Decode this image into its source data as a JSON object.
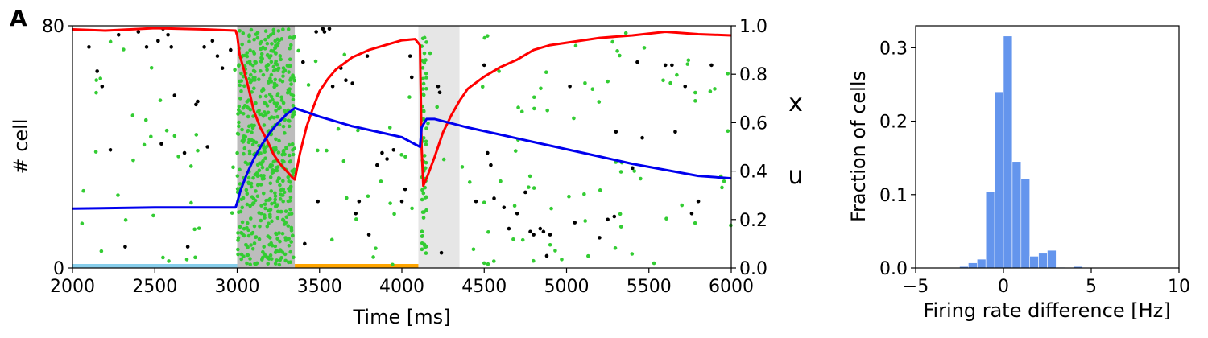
{
  "panel_label": "A",
  "chart_data": [
    {
      "type": "scatter",
      "name": "raster-with-synaptic-variables",
      "xlabel": "Time [ms]",
      "ylabel": "# cell",
      "xlim": [
        2000,
        6000
      ],
      "ylim": [
        0,
        80
      ],
      "y2lim": [
        0,
        1
      ],
      "xticks": [
        "2000",
        "2500",
        "3000",
        "3500",
        "4000",
        "4500",
        "5000",
        "5500",
        "6000"
      ],
      "yticks": [
        "0",
        "80"
      ],
      "y2ticks": [
        "0.0",
        "0.2",
        "0.4",
        "0.6",
        "0.8",
        "1.0"
      ],
      "grid": false,
      "colors": {
        "x": "#ff0000",
        "u": "#0000ee",
        "foreground_spikes": "#33cc33",
        "background_spikes": "#000000",
        "shade_dark": "#bdbdbd",
        "shade_light": "#e6e6e6",
        "bar_cue": "#87ceeb",
        "bar_delay": "#ffa500"
      },
      "shaded_regions": [
        {
          "x0": 3000,
          "x1": 3350,
          "shade": "dark"
        },
        {
          "x0": 4100,
          "x1": 4350,
          "shade": "light"
        }
      ],
      "bottom_bars": [
        {
          "x0": 2000,
          "x1": 3000,
          "color": "bar_cue"
        },
        {
          "x0": 3350,
          "x1": 4100,
          "color": "bar_delay"
        }
      ],
      "series": [
        {
          "name": "x",
          "axis": "right",
          "points": [
            [
              2000,
              0.985
            ],
            [
              2200,
              0.98
            ],
            [
              2500,
              0.99
            ],
            [
              2800,
              0.985
            ],
            [
              2990,
              0.98
            ],
            [
              3000,
              0.96
            ],
            [
              3015,
              0.88
            ],
            [
              3040,
              0.82
            ],
            [
              3070,
              0.74
            ],
            [
              3100,
              0.65
            ],
            [
              3140,
              0.58
            ],
            [
              3180,
              0.53
            ],
            [
              3220,
              0.47
            ],
            [
              3260,
              0.43
            ],
            [
              3300,
              0.4
            ],
            [
              3340,
              0.37
            ],
            [
              3350,
              0.365
            ],
            [
              3380,
              0.47
            ],
            [
              3420,
              0.58
            ],
            [
              3460,
              0.66
            ],
            [
              3500,
              0.73
            ],
            [
              3550,
              0.78
            ],
            [
              3600,
              0.82
            ],
            [
              3700,
              0.87
            ],
            [
              3800,
              0.9
            ],
            [
              3900,
              0.92
            ],
            [
              4000,
              0.94
            ],
            [
              4080,
              0.945
            ],
            [
              4110,
              0.92
            ],
            [
              4120,
              0.5
            ],
            [
              4130,
              0.34
            ],
            [
              4150,
              0.37
            ],
            [
              4200,
              0.46
            ],
            [
              4250,
              0.56
            ],
            [
              4300,
              0.63
            ],
            [
              4350,
              0.69
            ],
            [
              4400,
              0.74
            ],
            [
              4500,
              0.79
            ],
            [
              4600,
              0.83
            ],
            [
              4700,
              0.86
            ],
            [
              4800,
              0.9
            ],
            [
              4900,
              0.92
            ],
            [
              5000,
              0.93
            ],
            [
              5200,
              0.95
            ],
            [
              5400,
              0.96
            ],
            [
              5600,
              0.975
            ],
            [
              5800,
              0.965
            ],
            [
              6000,
              0.96
            ]
          ]
        },
        {
          "name": "u",
          "axis": "right",
          "points": [
            [
              2000,
              0.245
            ],
            [
              2500,
              0.25
            ],
            [
              2990,
              0.25
            ],
            [
              3000,
              0.27
            ],
            [
              3020,
              0.32
            ],
            [
              3060,
              0.39
            ],
            [
              3100,
              0.45
            ],
            [
              3150,
              0.51
            ],
            [
              3200,
              0.56
            ],
            [
              3250,
              0.6
            ],
            [
              3300,
              0.635
            ],
            [
              3350,
              0.66
            ],
            [
              3500,
              0.625
            ],
            [
              3700,
              0.585
            ],
            [
              3900,
              0.555
            ],
            [
              4000,
              0.54
            ],
            [
              4110,
              0.5
            ],
            [
              4120,
              0.58
            ],
            [
              4150,
              0.615
            ],
            [
              4200,
              0.615
            ],
            [
              4400,
              0.58
            ],
            [
              4600,
              0.55
            ],
            [
              4800,
              0.52
            ],
            [
              5000,
              0.49
            ],
            [
              5200,
              0.46
            ],
            [
              5400,
              0.43
            ],
            [
              5600,
              0.405
            ],
            [
              5800,
              0.38
            ],
            [
              6000,
              0.37
            ]
          ]
        }
      ],
      "spike_raster": {
        "background_points": [
          [
            2100,
            73
          ],
          [
            2150,
            65
          ],
          [
            2180,
            60
          ],
          [
            2230,
            39
          ],
          [
            2280,
            77
          ],
          [
            2320,
            7
          ],
          [
            2400,
            78
          ],
          [
            2450,
            73
          ],
          [
            2520,
            75
          ],
          [
            2540,
            41
          ],
          [
            2550,
            79
          ],
          [
            2580,
            77
          ],
          [
            2600,
            73
          ],
          [
            2620,
            57
          ],
          [
            2680,
            38
          ],
          [
            2700,
            7
          ],
          [
            2750,
            54
          ],
          [
            2760,
            55
          ],
          [
            2800,
            73
          ],
          [
            2820,
            40
          ],
          [
            2850,
            75
          ],
          [
            2880,
            70
          ],
          [
            2910,
            66
          ],
          [
            2960,
            72
          ],
          [
            3400,
            68
          ],
          [
            3410,
            8
          ],
          [
            3480,
            78
          ],
          [
            3490,
            22
          ],
          [
            3520,
            79
          ],
          [
            3530,
            78
          ],
          [
            3560,
            79
          ],
          [
            3580,
            60
          ],
          [
            3630,
            66
          ],
          [
            3660,
            62
          ],
          [
            3700,
            61
          ],
          [
            3720,
            18
          ],
          [
            3740,
            22
          ],
          [
            3790,
            70
          ],
          [
            3800,
            11
          ],
          [
            3850,
            34
          ],
          [
            3880,
            38
          ],
          [
            3910,
            36
          ],
          [
            3950,
            39
          ],
          [
            4000,
            22
          ],
          [
            4020,
            26
          ],
          [
            4050,
            70
          ],
          [
            4060,
            63
          ],
          [
            4220,
            60
          ],
          [
            4230,
            58
          ],
          [
            4240,
            5
          ],
          [
            4450,
            22
          ],
          [
            4500,
            67
          ],
          [
            4520,
            38
          ],
          [
            4540,
            34
          ],
          [
            4560,
            23
          ],
          [
            4620,
            20
          ],
          [
            4650,
            13
          ],
          [
            4700,
            18
          ],
          [
            4750,
            25
          ],
          [
            4780,
            12
          ],
          [
            4800,
            11
          ],
          [
            4840,
            13
          ],
          [
            4860,
            12
          ],
          [
            4880,
            4
          ],
          [
            4900,
            11
          ],
          [
            5020,
            60
          ],
          [
            5050,
            15
          ],
          [
            5200,
            10
          ],
          [
            5250,
            16
          ],
          [
            5290,
            17
          ],
          [
            5300,
            45
          ],
          [
            5400,
            33
          ],
          [
            5430,
            68
          ],
          [
            5460,
            43
          ],
          [
            5600,
            67
          ],
          [
            5640,
            67
          ],
          [
            5660,
            45
          ],
          [
            5720,
            60
          ],
          [
            5760,
            18
          ],
          [
            5800,
            22
          ],
          [
            5880,
            67
          ]
        ]
      }
    },
    {
      "type": "bar",
      "name": "histogram",
      "xlabel": "Firing rate difference [Hz]",
      "ylabel": "Fraction of cells",
      "xlim": [
        -5,
        10
      ],
      "ylim": [
        0,
        0.33
      ],
      "xticks": [
        "−5",
        "0",
        "5",
        "10"
      ],
      "xtick_values": [
        -5,
        0,
        5,
        10
      ],
      "yticks": [
        "0.0",
        "0.1",
        "0.2",
        "0.3"
      ],
      "ytick_values": [
        0,
        0.1,
        0.2,
        0.3
      ],
      "bin_width": 0.5,
      "bin_starts": [
        -2.5,
        -2.0,
        -1.5,
        -1.0,
        -0.5,
        0.0,
        0.5,
        1.0,
        1.5,
        2.0,
        2.5,
        3.0,
        3.5,
        4.0
      ],
      "values": [
        0.002,
        0.007,
        0.012,
        0.104,
        0.24,
        0.316,
        0.145,
        0.121,
        0.016,
        0.02,
        0.024,
        0.001,
        0.0,
        0.002
      ],
      "color": "#6495ed",
      "grid": false
    }
  ]
}
